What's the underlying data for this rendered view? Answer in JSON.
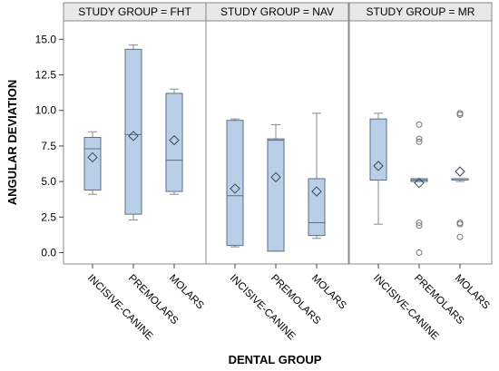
{
  "chart_data": {
    "type": "boxplot",
    "xlabel": "DENTAL GROUP",
    "ylabel": "ANGULAR DEVIATION",
    "ylim": [
      -0.8,
      16.3
    ],
    "yticks": [
      "0.0",
      "2.5",
      "5.0",
      "7.5",
      "10.0",
      "12.5",
      "15.0"
    ],
    "grid": false,
    "categories": [
      "INCISIVE-CANINE",
      "PREMOLARS",
      "MOLARS"
    ],
    "colors": {
      "box_fill": "#b9cfe8",
      "box_stroke": "#5e6e84",
      "whisker": "#8a8a8a",
      "frame": "#888888",
      "header_fill": "#e8e8e8"
    },
    "panels": [
      {
        "header": "STUDY GROUP = FHT",
        "boxes": [
          {
            "category": "INCISIVE-CANINE",
            "min": 4.1,
            "q1": 4.4,
            "median": 7.3,
            "q3": 8.1,
            "max": 8.5,
            "mean": 6.7,
            "outliers": []
          },
          {
            "category": "PREMOLARS",
            "min": 2.3,
            "q1": 2.7,
            "median": 8.3,
            "q3": 14.3,
            "max": 14.6,
            "mean": 8.2,
            "outliers": []
          },
          {
            "category": "MOLARS",
            "min": 4.1,
            "q1": 4.3,
            "median": 6.5,
            "q3": 11.2,
            "max": 11.5,
            "mean": 7.9,
            "outliers": []
          }
        ]
      },
      {
        "header": "STUDY GROUP = NAV",
        "boxes": [
          {
            "category": "INCISIVE-CANINE",
            "min": 0.4,
            "q1": 0.5,
            "median": 4.0,
            "q3": 9.3,
            "max": 9.4,
            "mean": 4.5,
            "outliers": []
          },
          {
            "category": "PREMOLARS",
            "min": 0.1,
            "q1": 0.1,
            "median": 7.9,
            "q3": 8.0,
            "max": 9.0,
            "mean": 5.3,
            "outliers": []
          },
          {
            "category": "MOLARS",
            "min": 1.0,
            "q1": 1.2,
            "median": 2.1,
            "q3": 5.2,
            "max": 9.8,
            "mean": 4.3,
            "outliers": []
          }
        ]
      },
      {
        "header": "STUDY GROUP = MR",
        "boxes": [
          {
            "category": "INCISIVE-CANINE",
            "min": 2.0,
            "q1": 5.1,
            "median": 5.1,
            "q3": 9.4,
            "max": 9.8,
            "mean": 6.1,
            "outliers": []
          },
          {
            "category": "PREMOLARS",
            "min": 5.0,
            "q1": 5.0,
            "median": 5.1,
            "q3": 5.2,
            "max": 5.2,
            "mean": 4.9,
            "outliers": [
              0.0,
              1.9,
              2.1,
              7.8,
              8.0,
              9.0
            ]
          },
          {
            "category": "MOLARS",
            "min": 5.0,
            "q1": 5.1,
            "median": 5.1,
            "q3": 5.2,
            "max": 5.2,
            "mean": 5.7,
            "outliers": [
              1.1,
              2.0,
              2.1,
              9.7,
              9.8
            ]
          }
        ]
      }
    ]
  }
}
